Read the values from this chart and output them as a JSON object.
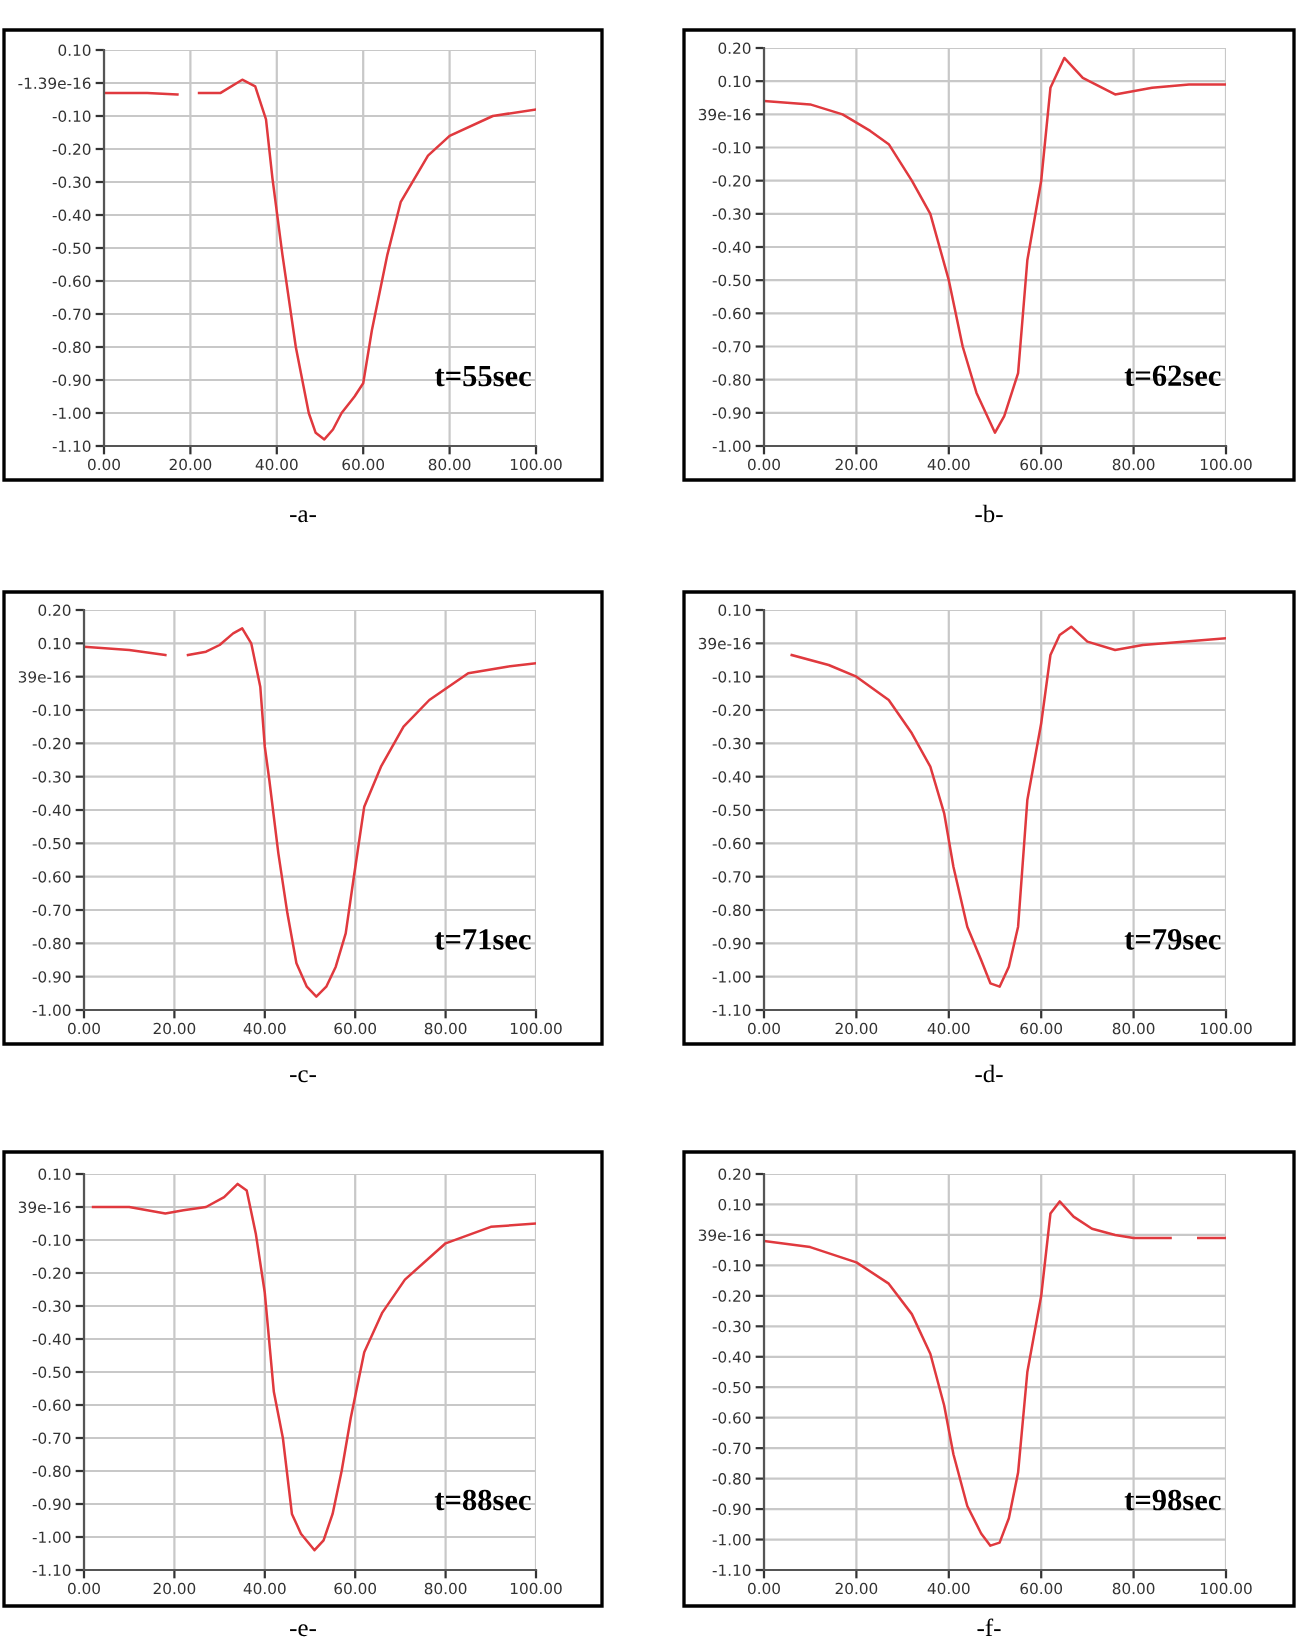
{
  "chart_data": [
    {
      "type": "line",
      "xlabel": "-a-",
      "annotations": [
        "t=55sec"
      ],
      "grid": true,
      "xlim": [
        0,
        100
      ],
      "ylim": [
        -1.1,
        0.1
      ],
      "xticks": [
        {
          "value": 0,
          "label": "0.00"
        },
        {
          "value": 20,
          "label": "20.00"
        },
        {
          "value": 40,
          "label": "40.00"
        },
        {
          "value": 60,
          "label": "60.00"
        },
        {
          "value": 80,
          "label": "80.00"
        },
        {
          "value": 100,
          "label": "100.00"
        }
      ],
      "yticks": [
        {
          "value": 0.1,
          "label": "0.10"
        },
        {
          "value": 0,
          "label": "-1.39e-16"
        },
        {
          "value": -0.1,
          "label": "-0.10"
        },
        {
          "value": -0.2,
          "label": "-0.20"
        },
        {
          "value": -0.3,
          "label": "-0.30"
        },
        {
          "value": -0.4,
          "label": "-0.40"
        },
        {
          "value": -0.5,
          "label": "-0.50"
        },
        {
          "value": -0.6,
          "label": "-0.60"
        },
        {
          "value": -0.7,
          "label": "-0.70"
        },
        {
          "value": -0.8,
          "label": "-0.80"
        },
        {
          "value": -0.9,
          "label": "-0.90"
        },
        {
          "value": -1.0,
          "label": "-1.00"
        },
        {
          "value": -1.1,
          "label": "-1.10"
        }
      ],
      "series": [
        {
          "color": "#e0393e",
          "x": [
            0,
            10,
            17,
            19,
            22,
            27,
            32,
            35,
            37.5,
            39,
            41.3,
            44.4,
            47.4,
            49,
            51,
            53,
            55,
            58,
            60,
            62,
            65.6,
            68.7,
            75,
            80,
            90,
            100
          ],
          "values": [
            -0.03,
            -0.03,
            -0.035,
            null,
            -0.03,
            -0.03,
            0.01,
            -0.01,
            -0.11,
            -0.29,
            -0.52,
            -0.8,
            -1.0,
            -1.06,
            -1.08,
            -1.05,
            -1.0,
            -0.95,
            -0.91,
            -0.75,
            -0.52,
            -0.36,
            -0.22,
            -0.16,
            -0.1,
            -0.08
          ]
        }
      ]
    },
    {
      "type": "line",
      "xlabel": "-b-",
      "annotations": [
        "t=62sec"
      ],
      "grid": true,
      "xlim": [
        0,
        100
      ],
      "ylim": [
        -1.0,
        0.2
      ],
      "xticks": [
        {
          "value": 0,
          "label": "0.00"
        },
        {
          "value": 20,
          "label": "20.00"
        },
        {
          "value": 40,
          "label": "40.00"
        },
        {
          "value": 60,
          "label": "60.00"
        },
        {
          "value": 80,
          "label": "80.00"
        },
        {
          "value": 100,
          "label": "100.00"
        }
      ],
      "yticks": [
        {
          "value": 0.2,
          "label": "0.20"
        },
        {
          "value": 0.1,
          "label": "0.10"
        },
        {
          "value": 0,
          "label": "39e-16"
        },
        {
          "value": -0.1,
          "label": "-0.10"
        },
        {
          "value": -0.2,
          "label": "-0.20"
        },
        {
          "value": -0.3,
          "label": "-0.30"
        },
        {
          "value": -0.4,
          "label": "-0.40"
        },
        {
          "value": -0.5,
          "label": "-0.50"
        },
        {
          "value": -0.6,
          "label": "-0.60"
        },
        {
          "value": -0.7,
          "label": "-0.70"
        },
        {
          "value": -0.8,
          "label": "-0.80"
        },
        {
          "value": -0.9,
          "label": "-0.90"
        },
        {
          "value": -1.0,
          "label": "-1.00"
        }
      ],
      "series": [
        {
          "color": "#e0393e",
          "x": [
            0,
            10,
            17,
            23,
            27,
            32,
            36,
            40,
            43,
            46,
            50,
            52,
            55,
            57,
            60,
            62,
            65,
            69,
            76,
            84,
            92,
            100
          ],
          "values": [
            0.04,
            0.03,
            0.0,
            -0.05,
            -0.09,
            -0.2,
            -0.3,
            -0.5,
            -0.7,
            -0.84,
            -0.96,
            -0.91,
            -0.78,
            -0.44,
            -0.2,
            0.08,
            0.17,
            0.11,
            0.06,
            0.08,
            0.09,
            0.09
          ]
        }
      ]
    },
    {
      "type": "line",
      "xlabel": "-c-",
      "annotations": [
        "t=71sec"
      ],
      "grid": true,
      "xlim": [
        0,
        100
      ],
      "ylim": [
        -1.0,
        0.2
      ],
      "xticks": [
        {
          "value": 0,
          "label": "0.00"
        },
        {
          "value": 20,
          "label": "20.00"
        },
        {
          "value": 40,
          "label": "40.00"
        },
        {
          "value": 60,
          "label": "60.00"
        },
        {
          "value": 80,
          "label": "80.00"
        },
        {
          "value": 100,
          "label": "100.00"
        }
      ],
      "yticks": [
        {
          "value": 0.2,
          "label": "0.20"
        },
        {
          "value": 0.1,
          "label": "0.10"
        },
        {
          "value": 0,
          "label": "39e-16"
        },
        {
          "value": -0.1,
          "label": "-0.10"
        },
        {
          "value": -0.2,
          "label": "-0.20"
        },
        {
          "value": -0.3,
          "label": "-0.30"
        },
        {
          "value": -0.4,
          "label": "-0.40"
        },
        {
          "value": -0.5,
          "label": "-0.50"
        },
        {
          "value": -0.6,
          "label": "-0.60"
        },
        {
          "value": -0.7,
          "label": "-0.70"
        },
        {
          "value": -0.8,
          "label": "-0.80"
        },
        {
          "value": -0.9,
          "label": "-0.90"
        },
        {
          "value": -1.0,
          "label": "-1.00"
        }
      ],
      "series": [
        {
          "color": "#e0393e",
          "x": [
            0,
            10,
            18,
            20,
            23,
            27,
            30,
            33,
            35,
            37,
            39,
            40,
            41,
            43,
            45,
            47,
            49.3,
            51.4,
            53.6,
            55.7,
            57.9,
            59.6,
            62,
            65.7,
            70.7,
            76.4,
            85,
            93.6,
            100
          ],
          "values": [
            0.09,
            0.08,
            0.065,
            null,
            0.065,
            0.075,
            0.095,
            0.13,
            0.145,
            0.1,
            -0.03,
            -0.21,
            -0.31,
            -0.53,
            -0.71,
            -0.86,
            -0.93,
            -0.96,
            -0.93,
            -0.87,
            -0.77,
            -0.61,
            -0.39,
            -0.27,
            -0.15,
            -0.07,
            0.01,
            0.03,
            0.04
          ]
        }
      ]
    },
    {
      "type": "line",
      "xlabel": "-d-",
      "annotations": [
        "t=79sec"
      ],
      "grid": true,
      "xlim": [
        0,
        100
      ],
      "ylim": [
        -1.1,
        0.1
      ],
      "xticks": [
        {
          "value": 0,
          "label": "0.00"
        },
        {
          "value": 20,
          "label": "20.00"
        },
        {
          "value": 40,
          "label": "40.00"
        },
        {
          "value": 60,
          "label": "60.00"
        },
        {
          "value": 80,
          "label": "80.00"
        },
        {
          "value": 100,
          "label": "100.00"
        }
      ],
      "yticks": [
        {
          "value": 0.1,
          "label": "0.10"
        },
        {
          "value": 0,
          "label": "39e-16"
        },
        {
          "value": -0.1,
          "label": "-0.10"
        },
        {
          "value": -0.2,
          "label": "-0.20"
        },
        {
          "value": -0.3,
          "label": "-0.30"
        },
        {
          "value": -0.4,
          "label": "-0.40"
        },
        {
          "value": -0.5,
          "label": "-0.50"
        },
        {
          "value": -0.6,
          "label": "-0.60"
        },
        {
          "value": -0.7,
          "label": "-0.70"
        },
        {
          "value": -0.8,
          "label": "-0.80"
        },
        {
          "value": -0.9,
          "label": "-0.90"
        },
        {
          "value": -1.0,
          "label": "-1.00"
        },
        {
          "value": -1.1,
          "label": "-1.10"
        }
      ],
      "series": [
        {
          "color": "#e0393e",
          "x": [
            6,
            14,
            20,
            27,
            32,
            36,
            39,
            41,
            44,
            47,
            49,
            51,
            53,
            55,
            57,
            60,
            62,
            64,
            66.5,
            70,
            76,
            82,
            100
          ],
          "values": [
            -0.035,
            -0.065,
            -0.1,
            -0.17,
            -0.27,
            -0.37,
            -0.51,
            -0.67,
            -0.85,
            -0.95,
            -1.02,
            -1.03,
            -0.97,
            -0.85,
            -0.47,
            -0.24,
            -0.035,
            0.025,
            0.05,
            0.005,
            -0.02,
            -0.005,
            0.015
          ]
        }
      ]
    },
    {
      "type": "line",
      "xlabel": "-e-",
      "annotations": [
        "t=88sec"
      ],
      "grid": true,
      "xlim": [
        0,
        100
      ],
      "ylim": [
        -1.1,
        0.1
      ],
      "xticks": [
        {
          "value": 0,
          "label": "0.00"
        },
        {
          "value": 20,
          "label": "20.00"
        },
        {
          "value": 40,
          "label": "40.00"
        },
        {
          "value": 60,
          "label": "60.00"
        },
        {
          "value": 80,
          "label": "80.00"
        },
        {
          "value": 100,
          "label": "100.00"
        }
      ],
      "yticks": [
        {
          "value": 0.1,
          "label": "0.10"
        },
        {
          "value": 0,
          "label": "39e-16"
        },
        {
          "value": -0.1,
          "label": "-0.10"
        },
        {
          "value": -0.2,
          "label": "-0.20"
        },
        {
          "value": -0.3,
          "label": "-0.30"
        },
        {
          "value": -0.4,
          "label": "-0.40"
        },
        {
          "value": -0.5,
          "label": "-0.50"
        },
        {
          "value": -0.6,
          "label": "-0.60"
        },
        {
          "value": -0.7,
          "label": "-0.70"
        },
        {
          "value": -0.8,
          "label": "-0.80"
        },
        {
          "value": -0.9,
          "label": "-0.90"
        },
        {
          "value": -1.0,
          "label": "-1.00"
        },
        {
          "value": -1.1,
          "label": "-1.10"
        }
      ],
      "series": [
        {
          "color": "#e0393e",
          "x": [
            2,
            10,
            18,
            22,
            27,
            31,
            34,
            36,
            38,
            40,
            42,
            44,
            46,
            48,
            51,
            53,
            55,
            57,
            59,
            62,
            66,
            71,
            80,
            90,
            100
          ],
          "values": [
            0.0,
            0.0,
            -0.02,
            -0.01,
            0.0,
            0.03,
            0.07,
            0.05,
            -0.08,
            -0.26,
            -0.56,
            -0.7,
            -0.93,
            -0.99,
            -1.04,
            -1.01,
            -0.93,
            -0.8,
            -0.64,
            -0.44,
            -0.32,
            -0.22,
            -0.11,
            -0.06,
            -0.05
          ]
        }
      ]
    },
    {
      "type": "line",
      "xlabel": "-f-",
      "annotations": [
        "t=98sec"
      ],
      "grid": true,
      "xlim": [
        0,
        100
      ],
      "ylim": [
        -1.1,
        0.2
      ],
      "xticks": [
        {
          "value": 0,
          "label": "0.00"
        },
        {
          "value": 20,
          "label": "20.00"
        },
        {
          "value": 40,
          "label": "40.00"
        },
        {
          "value": 60,
          "label": "60.00"
        },
        {
          "value": 80,
          "label": "80.00"
        },
        {
          "value": 100,
          "label": "100.00"
        }
      ],
      "yticks": [
        {
          "value": 0.2,
          "label": "0.20"
        },
        {
          "value": 0.1,
          "label": "0.10"
        },
        {
          "value": 0,
          "label": "39e-16"
        },
        {
          "value": -0.1,
          "label": "-0.10"
        },
        {
          "value": -0.2,
          "label": "-0.20"
        },
        {
          "value": -0.3,
          "label": "-0.30"
        },
        {
          "value": -0.4,
          "label": "-0.40"
        },
        {
          "value": -0.5,
          "label": "-0.50"
        },
        {
          "value": -0.6,
          "label": "-0.60"
        },
        {
          "value": -0.7,
          "label": "-0.70"
        },
        {
          "value": -0.8,
          "label": "-0.80"
        },
        {
          "value": -0.9,
          "label": "-0.90"
        },
        {
          "value": -1.0,
          "label": "-1.00"
        },
        {
          "value": -1.1,
          "label": "-1.10"
        }
      ],
      "series": [
        {
          "color": "#e0393e",
          "x": [
            0,
            10,
            20,
            27,
            32,
            36,
            39,
            41,
            44,
            47,
            49,
            51,
            53,
            55,
            57,
            60,
            62,
            64,
            67,
            71,
            76,
            80,
            88,
            90,
            94,
            100
          ],
          "values": [
            -0.02,
            -0.04,
            -0.09,
            -0.16,
            -0.26,
            -0.39,
            -0.56,
            -0.72,
            -0.89,
            -0.98,
            -1.02,
            -1.01,
            -0.93,
            -0.78,
            -0.45,
            -0.2,
            0.07,
            0.11,
            0.06,
            0.02,
            0.0,
            -0.01,
            -0.01,
            null,
            -0.01,
            -0.01
          ]
        }
      ]
    }
  ]
}
